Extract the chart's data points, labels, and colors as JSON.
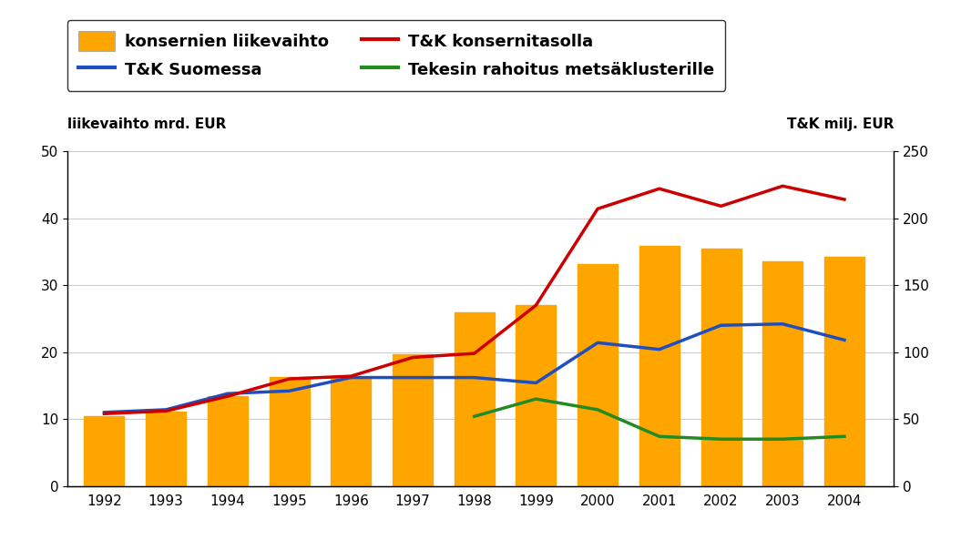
{
  "years": [
    1992,
    1993,
    1994,
    1995,
    1996,
    1997,
    1998,
    1999,
    2000,
    2001,
    2002,
    2003,
    2004
  ],
  "bar_values": [
    10.4,
    11.1,
    13.4,
    16.3,
    16.1,
    19.7,
    26.0,
    27.0,
    33.2,
    35.8,
    35.4,
    33.6,
    34.2
  ],
  "blue_line": [
    55,
    57,
    69,
    71,
    81,
    81,
    81,
    77,
    107,
    102,
    120,
    121,
    109
  ],
  "red_line": [
    54,
    56,
    67,
    80,
    82,
    96,
    99,
    135,
    207,
    222,
    209,
    224,
    214
  ],
  "green_line": [
    null,
    null,
    null,
    null,
    null,
    null,
    52,
    65,
    57,
    37,
    35,
    35,
    37
  ],
  "bar_color": "#FFA500",
  "blue_color": "#1F4FBF",
  "red_color": "#CC0000",
  "green_color": "#228B22",
  "left_ylim": [
    0,
    50
  ],
  "right_ylim": [
    0,
    250
  ],
  "left_yticks": [
    0,
    10,
    20,
    30,
    40,
    50
  ],
  "right_yticks": [
    0,
    50,
    100,
    150,
    200,
    250
  ],
  "left_ylabel": "liikevaihto mrd. EUR",
  "right_ylabel": "T&K milj. EUR",
  "legend_labels": [
    "konsernien liikevaihto",
    "T&K Suomessa",
    "T&K konsernitasolla",
    "Tekesin rahoitus metsäklusterille"
  ],
  "background_color": "#FFFFFF",
  "grid_color": "#CCCCCC",
  "xlim": [
    1991.4,
    2004.8
  ]
}
